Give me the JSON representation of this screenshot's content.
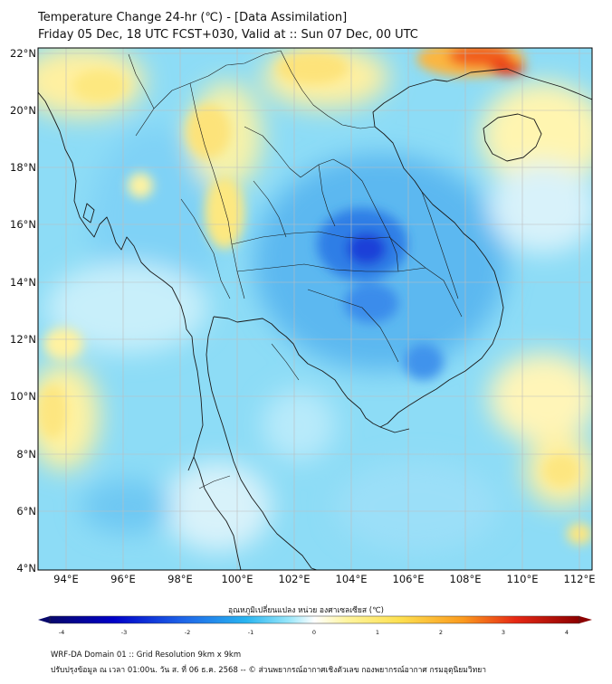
{
  "header": {
    "title": "Temperature Change 24-hr (℃) - [Data Assimilation]",
    "subtitle": "Friday 05 Dec, 18 UTC FCST+030, Valid at :: Sun 07 Dec, 00 UTC"
  },
  "map": {
    "lat_labels": [
      "22°N",
      "20°N",
      "18°N",
      "16°N",
      "14°N",
      "12°N",
      "10°N",
      "8°N",
      "6°N",
      "4°N"
    ],
    "lon_labels": [
      "94°E",
      "96°E",
      "98°E",
      "100°E",
      "102°E",
      "104°E",
      "106°E",
      "108°E",
      "110°E",
      "112°E"
    ],
    "lat_range": [
      4,
      22.3
    ],
    "lon_range": [
      93,
      112.5
    ]
  },
  "colorbar": {
    "label": "อุณหภูมิเปลี่ยนแปลง หน่วย องศาเซลเซียส (℃)",
    "ticks": [
      "-4",
      "-3",
      "-2",
      "-1",
      "0",
      "1",
      "2",
      "3",
      "4"
    ],
    "min": -4,
    "max": 4,
    "colors": [
      "#08086b",
      "#0000c8",
      "#1e64e8",
      "#28b4f0",
      "#96e6fa",
      "#ffffff",
      "#fff5a0",
      "#fde050",
      "#fb9a1e",
      "#e62814",
      "#8c0000"
    ]
  },
  "footer": {
    "line1": "WRF-DA Domain 01 :: Grid Resolution 9km x 9km",
    "line2": "ปรับปรุงข้อมูล ณ เวลา 01:00น. วัน ส. ที่ 06 ธ.ค. 2568 -- © ส่วนพยากรณ์อากาศเชิงตัวเลข กองพยากรณ์อากาศ กรมอุตุนิยมวิทยา"
  }
}
